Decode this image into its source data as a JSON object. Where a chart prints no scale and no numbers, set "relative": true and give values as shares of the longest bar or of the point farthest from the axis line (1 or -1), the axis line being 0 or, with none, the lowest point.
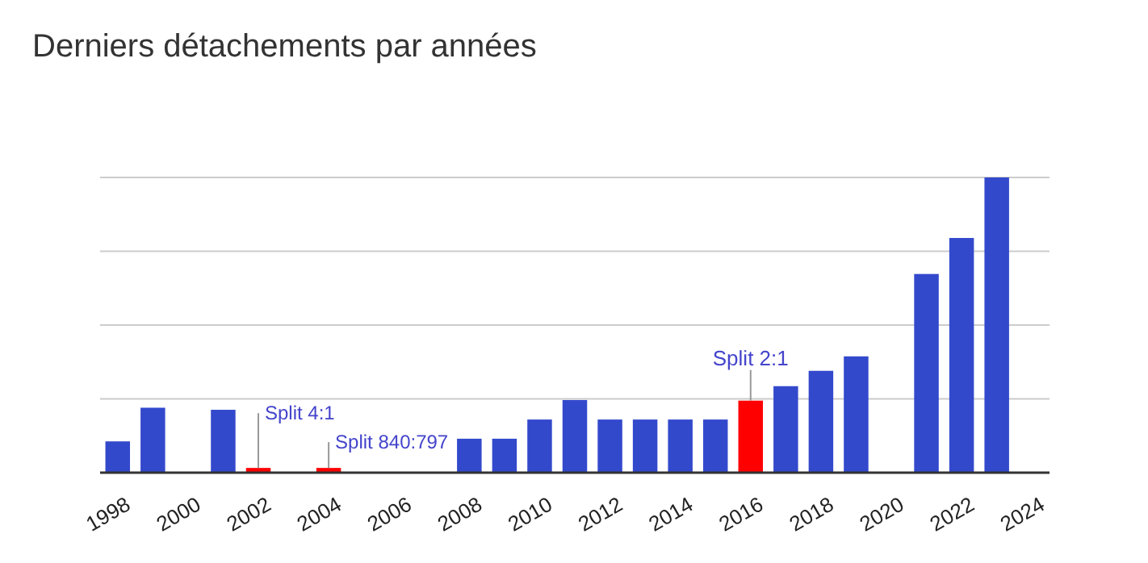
{
  "chart_data": {
    "type": "bar",
    "title": "Derniers détachements par années",
    "relative": true,
    "grid": "y",
    "categories": [
      "1998",
      null,
      "2000",
      null,
      "2002",
      null,
      "2004",
      null,
      "2006",
      null,
      "2008",
      null,
      "2010",
      null,
      "2012",
      null,
      "2014",
      null,
      "2016",
      null,
      "2018",
      null,
      "2020",
      null,
      "2022",
      null,
      "2024"
    ],
    "values": [
      0.106,
      0.22,
      0,
      0.213,
      0.016,
      0,
      0.016,
      0,
      0,
      0,
      0.115,
      0.115,
      0.18,
      0.246,
      0.18,
      0.18,
      0.18,
      0.18,
      0.244,
      0.293,
      0.345,
      0.394,
      0,
      0.673,
      0.795,
      1,
      0
    ],
    "colors": [
      "#3349cc",
      "#3349cc",
      "#3349cc",
      "#3349cc",
      "#ff0000",
      "#3349cc",
      "#ff0000",
      "#3349cc",
      "#3349cc",
      "#3349cc",
      "#3349cc",
      "#3349cc",
      "#3349cc",
      "#3349cc",
      "#3349cc",
      "#3349cc",
      "#3349cc",
      "#3349cc",
      "#ff0000",
      "#3349cc",
      "#3349cc",
      "#3349cc",
      "#3349cc",
      "#3349cc",
      "#3349cc",
      "#3349cc",
      "#3349cc"
    ],
    "annotations": [
      {
        "text": "Split 4:1",
        "x": "2002",
        "y": 0.016
      },
      {
        "text": "Split 840:797",
        "x": "2004",
        "y": 0.016
      },
      {
        "text": "Split 2:1",
        "x": "2016",
        "y": 0.244
      }
    ]
  }
}
